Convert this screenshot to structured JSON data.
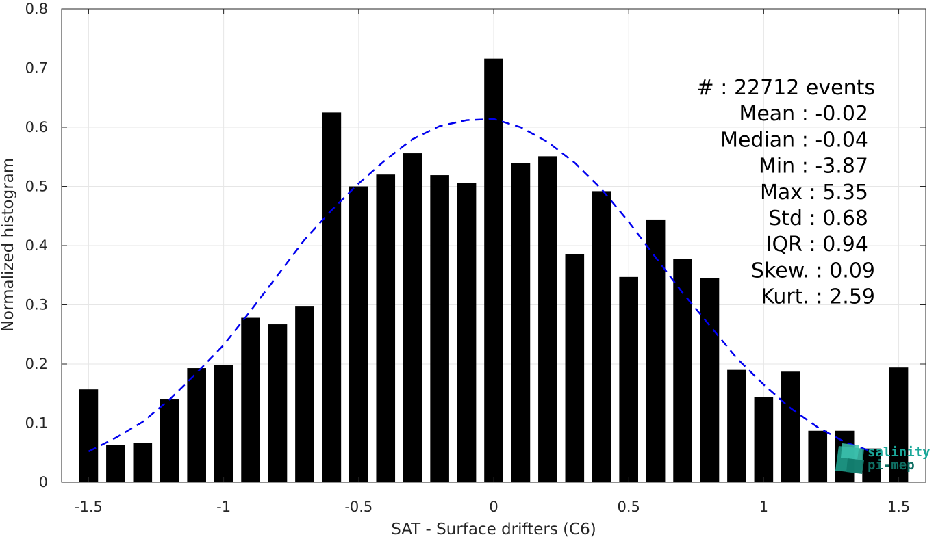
{
  "chart_data": {
    "type": "bar",
    "xlabel": "SAT - Surface drifters (C6)",
    "ylabel": "Normalized histogram",
    "xlim": [
      -1.6,
      1.6
    ],
    "ylim": [
      0,
      0.8
    ],
    "xticks": [
      "-1.5",
      "-1",
      "-0.5",
      "0",
      "0.5",
      "1",
      "1.5"
    ],
    "xtick_values": [
      -1.5,
      -1,
      -0.5,
      0,
      0.5,
      1,
      1.5
    ],
    "yticks": [
      "0",
      "0.1",
      "0.2",
      "0.3",
      "0.4",
      "0.5",
      "0.6",
      "0.7",
      "0.8"
    ],
    "ytick_values": [
      0,
      0.1,
      0.2,
      0.3,
      0.4,
      0.5,
      0.6,
      0.7,
      0.8
    ],
    "grid": true,
    "bar_color": "#000000",
    "bar_width": 0.07,
    "bins": [
      -1.5,
      -1.4,
      -1.3,
      -1.2,
      -1.1,
      -1.0,
      -0.9,
      -0.8,
      -0.7,
      -0.6,
      -0.5,
      -0.4,
      -0.3,
      -0.2,
      -0.1,
      0.0,
      0.1,
      0.2,
      0.3,
      0.4,
      0.5,
      0.6,
      0.7,
      0.8,
      0.9,
      1.0,
      1.1,
      1.2,
      1.3,
      1.4,
      1.5
    ],
    "values": [
      0.157,
      0.063,
      0.066,
      0.141,
      0.193,
      0.198,
      0.278,
      0.267,
      0.297,
      0.625,
      0.5,
      0.52,
      0.556,
      0.519,
      0.506,
      0.716,
      0.539,
      0.551,
      0.385,
      0.492,
      0.347,
      0.444,
      0.378,
      0.345,
      0.19,
      0.144,
      0.187,
      0.087,
      0.087,
      0.057,
      0.194
    ],
    "fit_curve": {
      "style": "dashed",
      "color": "#0000ee",
      "x": [
        -1.5,
        -1.4,
        -1.3,
        -1.2,
        -1.1,
        -1.0,
        -0.9,
        -0.8,
        -0.7,
        -0.6,
        -0.5,
        -0.4,
        -0.3,
        -0.2,
        -0.1,
        0.0,
        0.1,
        0.2,
        0.3,
        0.4,
        0.5,
        0.6,
        0.7,
        0.8,
        0.9,
        1.0,
        1.1,
        1.2,
        1.3,
        1.4
      ],
      "y": [
        0.052,
        0.075,
        0.102,
        0.14,
        0.185,
        0.232,
        0.29,
        0.35,
        0.41,
        0.46,
        0.505,
        0.545,
        0.58,
        0.602,
        0.612,
        0.614,
        0.6,
        0.575,
        0.54,
        0.495,
        0.44,
        0.38,
        0.32,
        0.265,
        0.21,
        0.165,
        0.125,
        0.093,
        0.068,
        0.052
      ]
    },
    "stats": [
      {
        "label": "#  : 22712 events"
      },
      {
        "label": "Mean : -0.02"
      },
      {
        "label": "Median : -0.04"
      },
      {
        "label": "Min : -3.87"
      },
      {
        "label": "Max : 5.35"
      },
      {
        "label": "Std : 0.68"
      },
      {
        "label": "IQR : 0.94"
      },
      {
        "label": "Skew. : 0.09"
      },
      {
        "label": "Kurt. : 2.59"
      }
    ]
  },
  "logo": {
    "line1": "salinity",
    "line2": "pi-mep",
    "color": "#1aa89a"
  }
}
